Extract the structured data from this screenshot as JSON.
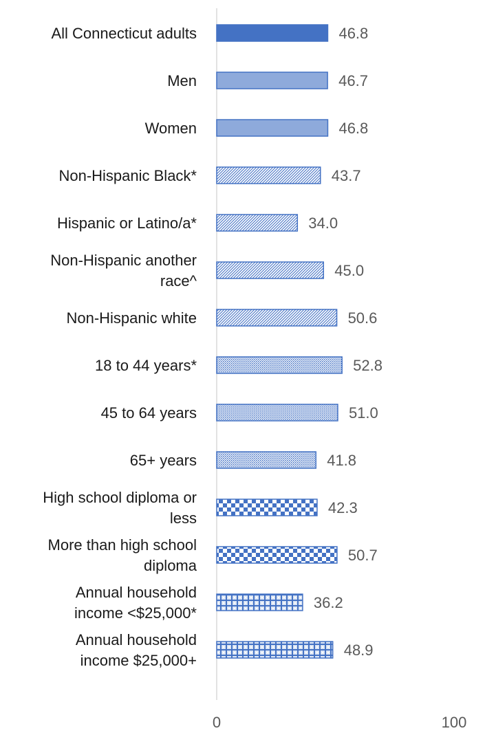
{
  "chart_data": {
    "type": "bar",
    "orientation": "horizontal",
    "categories": [
      [
        "All Connecticut adults"
      ],
      [
        "Men"
      ],
      [
        "Women"
      ],
      [
        "Non-Hispanic Black*"
      ],
      [
        "Hispanic or Latino/a*"
      ],
      [
        "Non-Hispanic another",
        "race^"
      ],
      [
        "Non-Hispanic white"
      ],
      [
        "18 to 44 years*"
      ],
      [
        "45 to 64 years"
      ],
      [
        "65+ years"
      ],
      [
        "High school diploma or",
        "less"
      ],
      [
        "More than high school",
        "diploma"
      ],
      [
        "Annual household",
        "income <$25,000*"
      ],
      [
        "Annual household",
        "income $25,000+"
      ]
    ],
    "values": [
      46.8,
      46.7,
      46.8,
      43.7,
      34.0,
      45.0,
      50.6,
      52.8,
      51.0,
      41.8,
      42.3,
      50.7,
      36.2,
      48.9
    ],
    "value_labels": [
      "46.8",
      "46.7",
      "46.8",
      "43.7",
      "34.0",
      "45.0",
      "50.6",
      "52.8",
      "51.0",
      "41.8",
      "42.3",
      "50.7",
      "36.2",
      "48.9"
    ],
    "fills": [
      "solid-dark",
      "solid-light",
      "solid-light",
      "diagonal",
      "diagonal",
      "diagonal",
      "diagonal",
      "dots",
      "dots",
      "dots",
      "checker",
      "checker",
      "plaid",
      "plaid"
    ],
    "xlim": [
      0,
      100
    ],
    "xticks": [
      "0",
      "100"
    ],
    "grid": false,
    "legend": "none",
    "colors": {
      "dark_fill": "#4472c4",
      "light_fill": "#8eaadb",
      "stroke": "#4472c4",
      "axis": "#d9d9d9",
      "label_text": "#1a1a1a",
      "value_text": "#595959"
    }
  }
}
